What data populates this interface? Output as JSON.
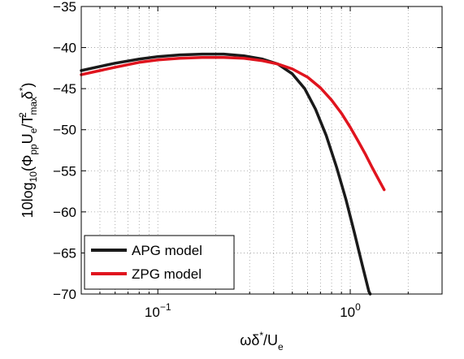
{
  "chart_data": {
    "type": "line",
    "x_scale": "log",
    "xlim": [
      0.04,
      3.0
    ],
    "ylim": [
      -70,
      -35
    ],
    "grid": true,
    "legend_position": "bottom-left",
    "x_ticks": [
      0.1,
      1.0
    ],
    "x_tick_labels": [
      {
        "base": "10",
        "exp": "−1"
      },
      {
        "base": "10",
        "exp": "0"
      }
    ],
    "y_ticks": [
      -70,
      -65,
      -60,
      -55,
      -50,
      -45,
      -40,
      -35
    ],
    "y_tick_labels": [
      "−70",
      "−65",
      "−60",
      "−55",
      "−50",
      "−45",
      "−40",
      "−35"
    ],
    "xlabel": {
      "parts": [
        "ωδ",
        "*",
        "/U",
        "e"
      ]
    },
    "ylabel": {
      "parts": [
        "10log",
        "10",
        "(Φ",
        "pp",
        "U",
        "e",
        "/T",
        "max",
        "2",
        "δ",
        "*",
        ")"
      ]
    },
    "series": [
      {
        "name": "APG model",
        "color": "#1a1a1a",
        "points": [
          [
            0.04,
            -42.8
          ],
          [
            0.05,
            -42.3
          ],
          [
            0.06,
            -41.9
          ],
          [
            0.08,
            -41.4
          ],
          [
            0.1,
            -41.1
          ],
          [
            0.13,
            -40.9
          ],
          [
            0.17,
            -40.8
          ],
          [
            0.22,
            -40.8
          ],
          [
            0.28,
            -41.0
          ],
          [
            0.35,
            -41.4
          ],
          [
            0.42,
            -42.0
          ],
          [
            0.5,
            -43.2
          ],
          [
            0.58,
            -45.0
          ],
          [
            0.66,
            -47.5
          ],
          [
            0.75,
            -50.7
          ],
          [
            0.85,
            -54.6
          ],
          [
            0.95,
            -58.5
          ],
          [
            1.05,
            -62.5
          ],
          [
            1.15,
            -66.3
          ],
          [
            1.25,
            -69.7
          ],
          [
            1.27,
            -70.0
          ]
        ]
      },
      {
        "name": "ZPG model",
        "color": "#e0141e",
        "points": [
          [
            0.04,
            -43.3
          ],
          [
            0.05,
            -42.8
          ],
          [
            0.06,
            -42.4
          ],
          [
            0.08,
            -41.8
          ],
          [
            0.1,
            -41.5
          ],
          [
            0.13,
            -41.3
          ],
          [
            0.17,
            -41.2
          ],
          [
            0.22,
            -41.2
          ],
          [
            0.28,
            -41.3
          ],
          [
            0.35,
            -41.6
          ],
          [
            0.42,
            -42.0
          ],
          [
            0.5,
            -42.6
          ],
          [
            0.6,
            -43.6
          ],
          [
            0.7,
            -44.9
          ],
          [
            0.8,
            -46.4
          ],
          [
            0.9,
            -48.0
          ],
          [
            1.0,
            -49.7
          ],
          [
            1.1,
            -51.4
          ],
          [
            1.2,
            -53.0
          ],
          [
            1.3,
            -54.6
          ],
          [
            1.4,
            -56.0
          ],
          [
            1.5,
            -57.3
          ]
        ]
      }
    ]
  }
}
